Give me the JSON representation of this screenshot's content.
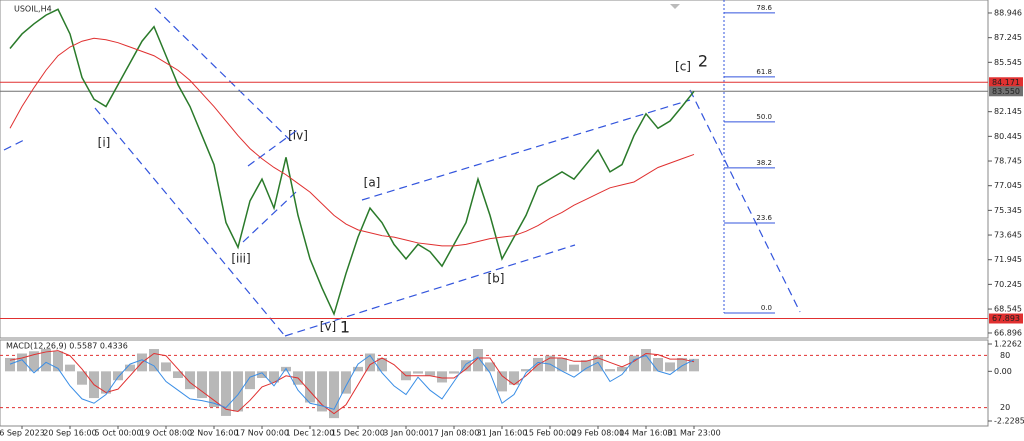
{
  "chart_data": [
    {
      "type": "line",
      "title": "USOIL,H4",
      "categories": [
        null,
        "6 Sep 2023",
        null,
        null,
        null,
        "20 Sep 16:00",
        null,
        null,
        null,
        "5 Oct 00:00",
        null,
        null,
        null,
        "19 Oct 08:00",
        null,
        null,
        null,
        "2 Nov 16:00",
        null,
        null,
        null,
        "17 Nov 00:00",
        null,
        null,
        null,
        "1 Dec 12:00",
        null,
        null,
        null,
        "15 Dec 20:00",
        null,
        null,
        null,
        "3 Jan 00:00",
        null,
        null,
        null,
        "17 Jan 08:00",
        null,
        null,
        null,
        "31 Jan 16:00",
        null,
        null,
        null,
        "15 Feb 00:00",
        null,
        null,
        null,
        "29 Feb 08:00",
        null,
        null,
        null,
        "14 Mar 16:00",
        null,
        null,
        null,
        "31 Mar 23:00"
      ],
      "series": [
        {
          "name": "USOIL",
          "color": "#2a7a2a",
          "values": [
            86.5,
            87.5,
            88.2,
            88.8,
            89.2,
            87.5,
            84.5,
            83.0,
            82.5,
            84.0,
            85.5,
            87.0,
            88.0,
            86.0,
            84.0,
            82.5,
            80.5,
            78.5,
            74.5,
            72.8,
            76.0,
            77.5,
            75.5,
            79.0,
            75.0,
            72.0,
            70.0,
            68.2,
            71.0,
            73.5,
            75.5,
            74.5,
            73.0,
            72.0,
            73.0,
            72.5,
            71.5,
            73.0,
            74.5,
            77.5,
            75.0,
            72.0,
            73.5,
            75.0,
            77.0,
            77.5,
            78.0,
            77.5,
            78.5,
            79.5,
            78.0,
            78.5,
            80.5,
            82.0,
            81.0,
            81.5,
            82.5,
            83.55
          ]
        },
        {
          "name": "MA",
          "color": "#e03030",
          "values": [
            81,
            82.5,
            83.8,
            85,
            86,
            86.6,
            87,
            87.2,
            87.1,
            86.9,
            86.6,
            86.3,
            86.0,
            85.5,
            85.0,
            84.3,
            83.4,
            82.5,
            81.5,
            80.5,
            79.6,
            78.9,
            78.3,
            77.8,
            77.2,
            76.6,
            75.8,
            75.0,
            74.4,
            74.0,
            73.8,
            73.6,
            73.5,
            73.3,
            73.1,
            73.0,
            72.9,
            72.9,
            73.0,
            73.2,
            73.4,
            73.5,
            73.6,
            73.9,
            74.3,
            74.8,
            75.2,
            75.7,
            76.1,
            76.5,
            76.9,
            77.1,
            77.3,
            77.8,
            78.3,
            78.6,
            78.9,
            79.2
          ]
        }
      ],
      "ylim": [
        66.55,
        89.84
      ],
      "yticks": [
        88.946,
        87.245,
        85.545,
        82.145,
        80.445,
        78.745,
        77.045,
        75.345,
        73.645,
        71.945,
        70.245,
        68.545,
        66.896
      ],
      "hlines": [
        {
          "value": 84.171,
          "label": "84.171",
          "color": "#e03030"
        },
        {
          "value": 83.55,
          "label": "83.550",
          "color": "#707070"
        },
        {
          "value": 67.893,
          "label": "67.893",
          "color": "#e03030"
        }
      ],
      "fib_levels": [
        {
          "price": 88.95,
          "label": "78.6"
        },
        {
          "price": 84.54,
          "label": "61.8"
        },
        {
          "price": 81.44,
          "label": "50.0"
        },
        {
          "price": 78.27,
          "label": "38.2"
        },
        {
          "price": 74.47,
          "label": "23.6"
        },
        {
          "price": 68.27,
          "label": "0.0"
        }
      ],
      "annotations": [
        "[i]",
        "[iii]",
        "[iv]",
        "[v]",
        "1",
        "[a]",
        "[b]",
        "[c]",
        "2"
      ]
    },
    {
      "type": "macd",
      "title": "MACD(12,26,9) 0.5587 0.4336",
      "series": [
        {
          "name": "MACD",
          "color": "#b8b8b8",
          "values": [
            0.6,
            0.8,
            0.9,
            1.0,
            0.9,
            0.3,
            -0.6,
            -1.2,
            -1.0,
            -0.4,
            0.3,
            0.8,
            1.0,
            0.4,
            -0.3,
            -0.8,
            -1.2,
            -1.6,
            -2.0,
            -1.8,
            -0.8,
            -0.3,
            -0.5,
            0.2,
            -0.6,
            -1.4,
            -1.8,
            -2.1,
            -1.0,
            0.2,
            0.8,
            0.6,
            0.0,
            -0.4,
            -0.1,
            -0.2,
            -0.5,
            -0.1,
            0.5,
            1.0,
            0.4,
            -0.9,
            -0.6,
            0.1,
            0.6,
            0.7,
            0.6,
            0.3,
            0.5,
            0.7,
            0.1,
            0.2,
            0.7,
            1.0,
            0.6,
            0.4,
            0.6,
            0.56
          ]
        },
        {
          "name": "Signal",
          "color": "#e03030",
          "values": [
            0.5,
            0.6,
            0.75,
            0.87,
            0.93,
            0.7,
            0.1,
            -0.6,
            -0.95,
            -0.8,
            -0.2,
            0.4,
            0.8,
            0.7,
            0.1,
            -0.5,
            -0.9,
            -1.3,
            -1.7,
            -1.8,
            -1.3,
            -0.7,
            -0.5,
            -0.2,
            -0.3,
            -0.9,
            -1.5,
            -1.9,
            -1.5,
            -0.6,
            0.3,
            0.6,
            0.3,
            -0.2,
            -0.2,
            -0.2,
            -0.3,
            -0.3,
            0.1,
            0.6,
            0.6,
            -0.2,
            -0.6,
            -0.2,
            0.3,
            0.6,
            0.6,
            0.45,
            0.45,
            0.6,
            0.4,
            0.2,
            0.45,
            0.8,
            0.75,
            0.55,
            0.55,
            0.43
          ]
        },
        {
          "name": "Oscillator",
          "color": "#3a8ee6",
          "axis": "y2",
          "values": [
            70,
            75,
            60,
            72,
            65,
            45,
            30,
            25,
            35,
            55,
            70,
            75,
            68,
            50,
            40,
            30,
            28,
            25,
            20,
            35,
            55,
            60,
            45,
            65,
            40,
            25,
            22,
            18,
            45,
            70,
            80,
            60,
            45,
            35,
            55,
            40,
            30,
            50,
            70,
            78,
            60,
            25,
            35,
            60,
            72,
            70,
            62,
            55,
            65,
            72,
            50,
            58,
            75,
            80,
            62,
            58,
            68,
            75
          ]
        }
      ],
      "ylim": [
        -2.2285,
        1.2262
      ],
      "yticks": [
        1.2262,
        {
          "value": 0,
          "label": "0.00"
        },
        -2.2285
      ],
      "y2lim": [
        0,
        100
      ],
      "y2ticks": [
        20,
        80
      ]
    }
  ]
}
